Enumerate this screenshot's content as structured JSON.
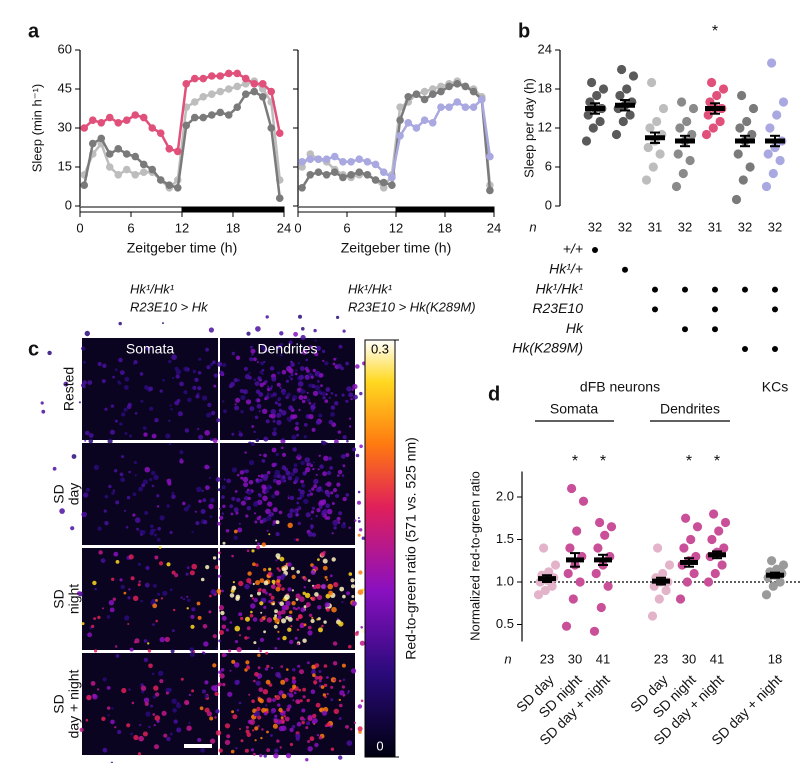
{
  "chart_data": [
    {
      "type": "line",
      "panel": "a",
      "ylabel": "Sleep (min h⁻¹)",
      "xlabel": "Zeitgeber time (h)",
      "xlim": [
        0,
        24
      ],
      "xticks": [
        0,
        6,
        12,
        18,
        24
      ],
      "ylim": [
        0,
        60
      ],
      "yticks": [
        0,
        15,
        30,
        45,
        60
      ],
      "x": [
        0.5,
        1.5,
        2.5,
        3.5,
        4.5,
        5.5,
        6.5,
        7.5,
        8.5,
        9.5,
        10.5,
        11.5,
        12.5,
        13.5,
        14.5,
        15.5,
        16.5,
        17.5,
        18.5,
        19.5,
        20.5,
        21.5,
        22.5,
        23.5
      ],
      "subplots": [
        {
          "genotype": [
            "Hk¹/Hk¹",
            "R23E10 > Hk"
          ],
          "series": [
            {
              "color": "#bdbdbd",
              "values": [
                12,
                20,
                24,
                15,
                12,
                14,
                12,
                13,
                13,
                10,
                7,
                10,
                38,
                40,
                42,
                43,
                44,
                45,
                46,
                47,
                48,
                45,
                40,
                10
              ]
            },
            {
              "color": "#7a7a7a",
              "values": [
                8,
                24,
                26,
                20,
                22,
                20,
                19,
                16,
                14,
                10,
                8,
                7,
                31,
                34,
                34,
                35,
                36,
                35,
                38,
                43,
                44,
                42,
                30,
                3
              ]
            },
            {
              "color": "#e0507a",
              "values": [
                30,
                33,
                32,
                34,
                32,
                33,
                35,
                34,
                30,
                28,
                22,
                21,
                47,
                49,
                49,
                50,
                50,
                51,
                51,
                49,
                47,
                47,
                44,
                28
              ]
            }
          ]
        },
        {
          "genotype": [
            "Hk¹/Hk¹",
            "R23E10 > Hk(K289M)"
          ],
          "series": [
            {
              "color": "#bdbdbd",
              "values": [
                15,
                20,
                18,
                17,
                14,
                12,
                11,
                12,
                12,
                10,
                7,
                12,
                38,
                40,
                43,
                44,
                45,
                46,
                47,
                48,
                46,
                45,
                42,
                8
              ]
            },
            {
              "color": "#7a7a7a",
              "values": [
                7,
                12,
                13,
                12,
                13,
                11,
                12,
                13,
                12,
                10,
                9,
                8,
                33,
                42,
                43,
                41,
                43,
                44,
                46,
                47,
                46,
                44,
                41,
                6
              ]
            },
            {
              "color": "#a9a8e0",
              "values": [
                17,
                18,
                18,
                18,
                19,
                17,
                17,
                18,
                17,
                16,
                13,
                11,
                27,
                32,
                30,
                33,
                32,
                38,
                38,
                40,
                38,
                38,
                41,
                19
              ]
            }
          ]
        }
      ]
    },
    {
      "type": "strip",
      "panel": "b",
      "ylabel": "Sleep per day (h)",
      "ylim": [
        0,
        24
      ],
      "yticks": [
        0,
        6,
        12,
        18,
        24
      ],
      "n_label": "n",
      "groups": [
        {
          "color": "#5a5a5a",
          "n": 32,
          "mean": 15,
          "error": 0.8,
          "points": [
            10,
            12,
            13,
            14,
            15,
            15,
            16,
            17,
            18,
            19
          ]
        },
        {
          "color": "#5a5a5a",
          "n": 32,
          "mean": 15.5,
          "error": 0.8,
          "points": [
            11,
            13,
            14,
            15,
            15.5,
            16,
            17,
            18,
            20,
            21
          ]
        },
        {
          "color": "#bdbdbd",
          "n": 31,
          "mean": 10.5,
          "error": 0.8,
          "points": [
            4,
            6,
            8,
            9,
            10,
            11,
            12,
            13,
            15,
            19
          ]
        },
        {
          "color": "#8a8a8a",
          "n": 32,
          "mean": 10,
          "error": 0.8,
          "points": [
            3,
            5,
            7,
            8,
            10,
            11,
            12,
            13,
            15,
            16
          ]
        },
        {
          "color": "#e0507a",
          "n": 31,
          "mean": 15,
          "error": 0.8,
          "annotation": "*",
          "points": [
            11,
            12,
            13,
            14,
            15,
            15,
            16,
            17,
            18,
            19
          ]
        },
        {
          "color": "#7a7a7a",
          "n": 32,
          "mean": 10,
          "error": 0.8,
          "points": [
            1,
            4,
            6,
            8,
            10,
            11,
            12,
            13,
            15,
            17
          ]
        },
        {
          "color": "#a9a8e0",
          "n": 32,
          "mean": 10,
          "error": 0.8,
          "points": [
            3,
            5,
            7,
            8,
            9,
            10,
            12,
            14,
            16,
            22
          ]
        }
      ],
      "genotype_labels": [
        "+/+",
        "Hk¹/+",
        "Hk¹/Hk¹",
        "R23E10",
        "Hk",
        "Hk(K289M)"
      ],
      "genotype_matrix": [
        [
          1,
          0,
          0,
          0,
          0,
          0,
          0
        ],
        [
          0,
          1,
          0,
          0,
          0,
          0,
          0
        ],
        [
          0,
          0,
          1,
          1,
          1,
          1,
          1
        ],
        [
          0,
          0,
          1,
          0,
          1,
          0,
          1
        ],
        [
          0,
          0,
          0,
          1,
          1,
          0,
          0
        ],
        [
          0,
          0,
          0,
          0,
          0,
          1,
          1
        ]
      ]
    },
    {
      "type": "image",
      "panel": "c",
      "columns": [
        "Somata",
        "Dendrites"
      ],
      "rows": [
        [
          "Rested"
        ],
        [
          "SD",
          "day"
        ],
        [
          "SD",
          "night"
        ],
        [
          "SD",
          "day + night"
        ]
      ],
      "colorbar": {
        "label": "Red-to-green ratio (571 vs. 525 nm)",
        "lim": [
          0,
          0.3
        ],
        "ticks": [
          0,
          0.3
        ]
      }
    },
    {
      "type": "strip",
      "panel": "d",
      "ylabel": "Normalized red-to-green ratio",
      "ylim": [
        0.3,
        2.3
      ],
      "yticks": [
        0.5,
        {
          "value": 1,
          "label": "1.0"
        },
        1.5,
        {
          "value": 2,
          "label": "2.0"
        }
      ],
      "reference": 1,
      "n_label": "n",
      "headers": [
        "dFB neurons",
        "Somata",
        "Dendrites",
        "KCs"
      ],
      "groups": [
        {
          "category": "SD day",
          "color": "#e3b3ca",
          "n": 23,
          "mean": 1.04,
          "error": 0.04,
          "points": [
            0.85,
            0.9,
            0.95,
            1.0,
            1.02,
            1.05,
            1.08,
            1.12,
            1.2,
            1.4
          ]
        },
        {
          "category": "SD night",
          "color": "#c84f98",
          "n": 30,
          "mean": 1.26,
          "error": 0.08,
          "annotation": "*",
          "points": [
            0.48,
            0.8,
            1.0,
            1.1,
            1.2,
            1.3,
            1.4,
            1.6,
            1.95,
            2.1
          ]
        },
        {
          "category": "SD day + night",
          "color": "#c84f98",
          "n": 41,
          "mean": 1.26,
          "error": 0.06,
          "annotation": "*",
          "points": [
            0.42,
            0.7,
            0.95,
            1.1,
            1.2,
            1.3,
            1.4,
            1.55,
            1.65,
            1.7
          ]
        },
        {
          "category": "SD day",
          "color": "#e3b3ca",
          "n": 23,
          "mean": 1.01,
          "error": 0.04,
          "points": [
            0.6,
            0.8,
            0.9,
            0.95,
            1.0,
            1.0,
            1.05,
            1.1,
            1.2,
            1.4
          ]
        },
        {
          "category": "SD night",
          "color": "#c84f98",
          "n": 30,
          "mean": 1.23,
          "error": 0.05,
          "annotation": "*",
          "points": [
            0.8,
            1.0,
            1.1,
            1.2,
            1.25,
            1.3,
            1.4,
            1.5,
            1.65,
            1.75
          ]
        },
        {
          "category": "SD day + night",
          "color": "#c84f98",
          "n": 41,
          "mean": 1.32,
          "error": 0.04,
          "annotation": "*",
          "points": [
            1.0,
            1.1,
            1.2,
            1.3,
            1.35,
            1.4,
            1.5,
            1.6,
            1.7,
            1.8
          ]
        },
        {
          "category": "SD day + night",
          "color": "#9a9a9a",
          "n": 18,
          "mean": 1.08,
          "error": 0.03,
          "points": [
            0.85,
            0.95,
            1.0,
            1.05,
            1.08,
            1.1,
            1.12,
            1.15,
            1.2,
            1.25
          ]
        }
      ]
    }
  ]
}
